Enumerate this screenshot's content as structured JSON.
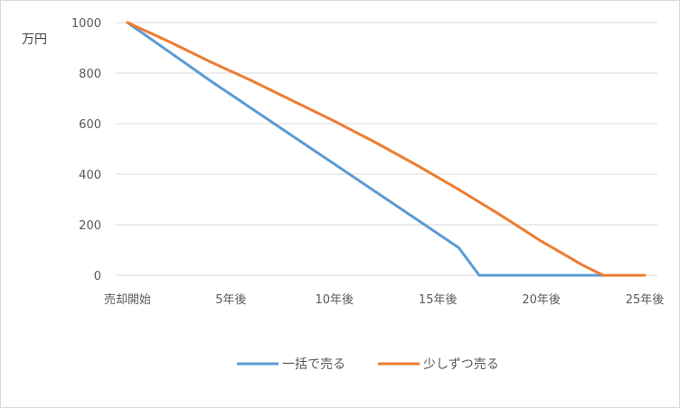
{
  "chart_data": {
    "type": "line",
    "title": "",
    "ylabel": "万円",
    "xlabel": "",
    "ylim": [
      0,
      1000
    ],
    "yticks": [
      0,
      200,
      400,
      600,
      800,
      1000
    ],
    "x_labels": [
      "売却開始",
      "5年後",
      "10年後",
      "15年後",
      "20年後",
      "25年後"
    ],
    "x_label_positions": [
      0,
      5,
      10,
      15,
      20,
      25
    ],
    "xlim": [
      0,
      25
    ],
    "grid": true,
    "legend_position": "bottom",
    "series": [
      {
        "name": "一括で売る",
        "color": "#5b9bd5",
        "x": [
          0,
          2,
          4,
          6,
          8,
          10,
          12,
          14,
          16,
          17,
          18,
          20,
          22,
          24,
          25
        ],
        "values": [
          1000,
          885,
          770,
          660,
          550,
          440,
          330,
          220,
          110,
          0,
          0,
          0,
          0,
          0,
          0
        ]
      },
      {
        "name": "少しずつ売る",
        "color": "#ed7d31",
        "x": [
          0,
          2,
          4,
          6,
          8,
          10,
          12,
          14,
          16,
          18,
          20,
          22,
          23,
          24,
          25
        ],
        "values": [
          1000,
          925,
          845,
          770,
          690,
          610,
          525,
          435,
          340,
          240,
          135,
          40,
          0,
          0,
          0
        ]
      }
    ]
  }
}
